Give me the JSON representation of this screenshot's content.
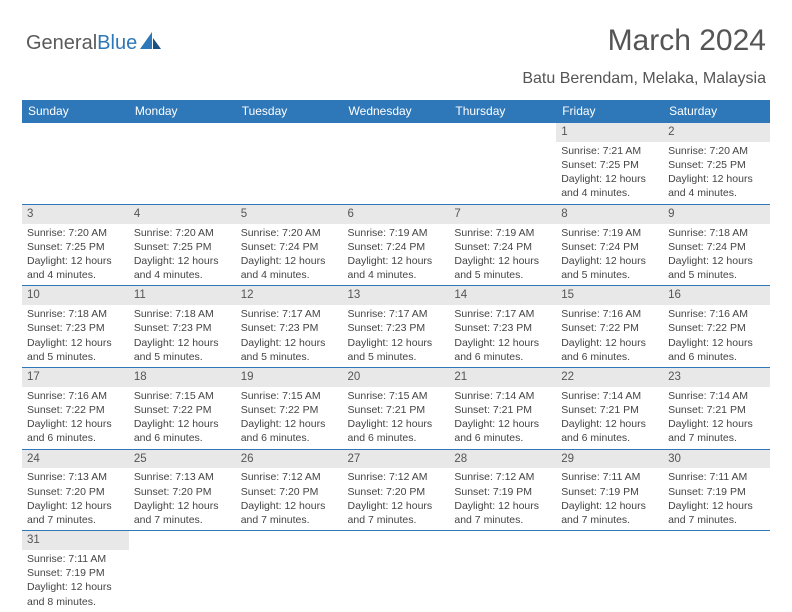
{
  "logo": {
    "text1": "General",
    "text2": "Blue"
  },
  "title": "March 2024",
  "location": "Batu Berendam, Melaka, Malaysia",
  "header_bg": "#2e77b8",
  "header_fg": "#ffffff",
  "daynum_bg": "#e8e8e8",
  "text_color": "#444444",
  "border_color": "#2e77b8",
  "days": [
    "Sunday",
    "Monday",
    "Tuesday",
    "Wednesday",
    "Thursday",
    "Friday",
    "Saturday"
  ],
  "weeks": [
    [
      {
        "n": "",
        "sr": "",
        "ss": "",
        "dl": ""
      },
      {
        "n": "",
        "sr": "",
        "ss": "",
        "dl": ""
      },
      {
        "n": "",
        "sr": "",
        "ss": "",
        "dl": ""
      },
      {
        "n": "",
        "sr": "",
        "ss": "",
        "dl": ""
      },
      {
        "n": "",
        "sr": "",
        "ss": "",
        "dl": ""
      },
      {
        "n": "1",
        "sr": "Sunrise: 7:21 AM",
        "ss": "Sunset: 7:25 PM",
        "dl": "Daylight: 12 hours and 4 minutes."
      },
      {
        "n": "2",
        "sr": "Sunrise: 7:20 AM",
        "ss": "Sunset: 7:25 PM",
        "dl": "Daylight: 12 hours and 4 minutes."
      }
    ],
    [
      {
        "n": "3",
        "sr": "Sunrise: 7:20 AM",
        "ss": "Sunset: 7:25 PM",
        "dl": "Daylight: 12 hours and 4 minutes."
      },
      {
        "n": "4",
        "sr": "Sunrise: 7:20 AM",
        "ss": "Sunset: 7:25 PM",
        "dl": "Daylight: 12 hours and 4 minutes."
      },
      {
        "n": "5",
        "sr": "Sunrise: 7:20 AM",
        "ss": "Sunset: 7:24 PM",
        "dl": "Daylight: 12 hours and 4 minutes."
      },
      {
        "n": "6",
        "sr": "Sunrise: 7:19 AM",
        "ss": "Sunset: 7:24 PM",
        "dl": "Daylight: 12 hours and 4 minutes."
      },
      {
        "n": "7",
        "sr": "Sunrise: 7:19 AM",
        "ss": "Sunset: 7:24 PM",
        "dl": "Daylight: 12 hours and 5 minutes."
      },
      {
        "n": "8",
        "sr": "Sunrise: 7:19 AM",
        "ss": "Sunset: 7:24 PM",
        "dl": "Daylight: 12 hours and 5 minutes."
      },
      {
        "n": "9",
        "sr": "Sunrise: 7:18 AM",
        "ss": "Sunset: 7:24 PM",
        "dl": "Daylight: 12 hours and 5 minutes."
      }
    ],
    [
      {
        "n": "10",
        "sr": "Sunrise: 7:18 AM",
        "ss": "Sunset: 7:23 PM",
        "dl": "Daylight: 12 hours and 5 minutes."
      },
      {
        "n": "11",
        "sr": "Sunrise: 7:18 AM",
        "ss": "Sunset: 7:23 PM",
        "dl": "Daylight: 12 hours and 5 minutes."
      },
      {
        "n": "12",
        "sr": "Sunrise: 7:17 AM",
        "ss": "Sunset: 7:23 PM",
        "dl": "Daylight: 12 hours and 5 minutes."
      },
      {
        "n": "13",
        "sr": "Sunrise: 7:17 AM",
        "ss": "Sunset: 7:23 PM",
        "dl": "Daylight: 12 hours and 5 minutes."
      },
      {
        "n": "14",
        "sr": "Sunrise: 7:17 AM",
        "ss": "Sunset: 7:23 PM",
        "dl": "Daylight: 12 hours and 6 minutes."
      },
      {
        "n": "15",
        "sr": "Sunrise: 7:16 AM",
        "ss": "Sunset: 7:22 PM",
        "dl": "Daylight: 12 hours and 6 minutes."
      },
      {
        "n": "16",
        "sr": "Sunrise: 7:16 AM",
        "ss": "Sunset: 7:22 PM",
        "dl": "Daylight: 12 hours and 6 minutes."
      }
    ],
    [
      {
        "n": "17",
        "sr": "Sunrise: 7:16 AM",
        "ss": "Sunset: 7:22 PM",
        "dl": "Daylight: 12 hours and 6 minutes."
      },
      {
        "n": "18",
        "sr": "Sunrise: 7:15 AM",
        "ss": "Sunset: 7:22 PM",
        "dl": "Daylight: 12 hours and 6 minutes."
      },
      {
        "n": "19",
        "sr": "Sunrise: 7:15 AM",
        "ss": "Sunset: 7:22 PM",
        "dl": "Daylight: 12 hours and 6 minutes."
      },
      {
        "n": "20",
        "sr": "Sunrise: 7:15 AM",
        "ss": "Sunset: 7:21 PM",
        "dl": "Daylight: 12 hours and 6 minutes."
      },
      {
        "n": "21",
        "sr": "Sunrise: 7:14 AM",
        "ss": "Sunset: 7:21 PM",
        "dl": "Daylight: 12 hours and 6 minutes."
      },
      {
        "n": "22",
        "sr": "Sunrise: 7:14 AM",
        "ss": "Sunset: 7:21 PM",
        "dl": "Daylight: 12 hours and 6 minutes."
      },
      {
        "n": "23",
        "sr": "Sunrise: 7:14 AM",
        "ss": "Sunset: 7:21 PM",
        "dl": "Daylight: 12 hours and 7 minutes."
      }
    ],
    [
      {
        "n": "24",
        "sr": "Sunrise: 7:13 AM",
        "ss": "Sunset: 7:20 PM",
        "dl": "Daylight: 12 hours and 7 minutes."
      },
      {
        "n": "25",
        "sr": "Sunrise: 7:13 AM",
        "ss": "Sunset: 7:20 PM",
        "dl": "Daylight: 12 hours and 7 minutes."
      },
      {
        "n": "26",
        "sr": "Sunrise: 7:12 AM",
        "ss": "Sunset: 7:20 PM",
        "dl": "Daylight: 12 hours and 7 minutes."
      },
      {
        "n": "27",
        "sr": "Sunrise: 7:12 AM",
        "ss": "Sunset: 7:20 PM",
        "dl": "Daylight: 12 hours and 7 minutes."
      },
      {
        "n": "28",
        "sr": "Sunrise: 7:12 AM",
        "ss": "Sunset: 7:19 PM",
        "dl": "Daylight: 12 hours and 7 minutes."
      },
      {
        "n": "29",
        "sr": "Sunrise: 7:11 AM",
        "ss": "Sunset: 7:19 PM",
        "dl": "Daylight: 12 hours and 7 minutes."
      },
      {
        "n": "30",
        "sr": "Sunrise: 7:11 AM",
        "ss": "Sunset: 7:19 PM",
        "dl": "Daylight: 12 hours and 7 minutes."
      }
    ],
    [
      {
        "n": "31",
        "sr": "Sunrise: 7:11 AM",
        "ss": "Sunset: 7:19 PM",
        "dl": "Daylight: 12 hours and 8 minutes."
      },
      {
        "n": "",
        "sr": "",
        "ss": "",
        "dl": ""
      },
      {
        "n": "",
        "sr": "",
        "ss": "",
        "dl": ""
      },
      {
        "n": "",
        "sr": "",
        "ss": "",
        "dl": ""
      },
      {
        "n": "",
        "sr": "",
        "ss": "",
        "dl": ""
      },
      {
        "n": "",
        "sr": "",
        "ss": "",
        "dl": ""
      },
      {
        "n": "",
        "sr": "",
        "ss": "",
        "dl": ""
      }
    ]
  ]
}
